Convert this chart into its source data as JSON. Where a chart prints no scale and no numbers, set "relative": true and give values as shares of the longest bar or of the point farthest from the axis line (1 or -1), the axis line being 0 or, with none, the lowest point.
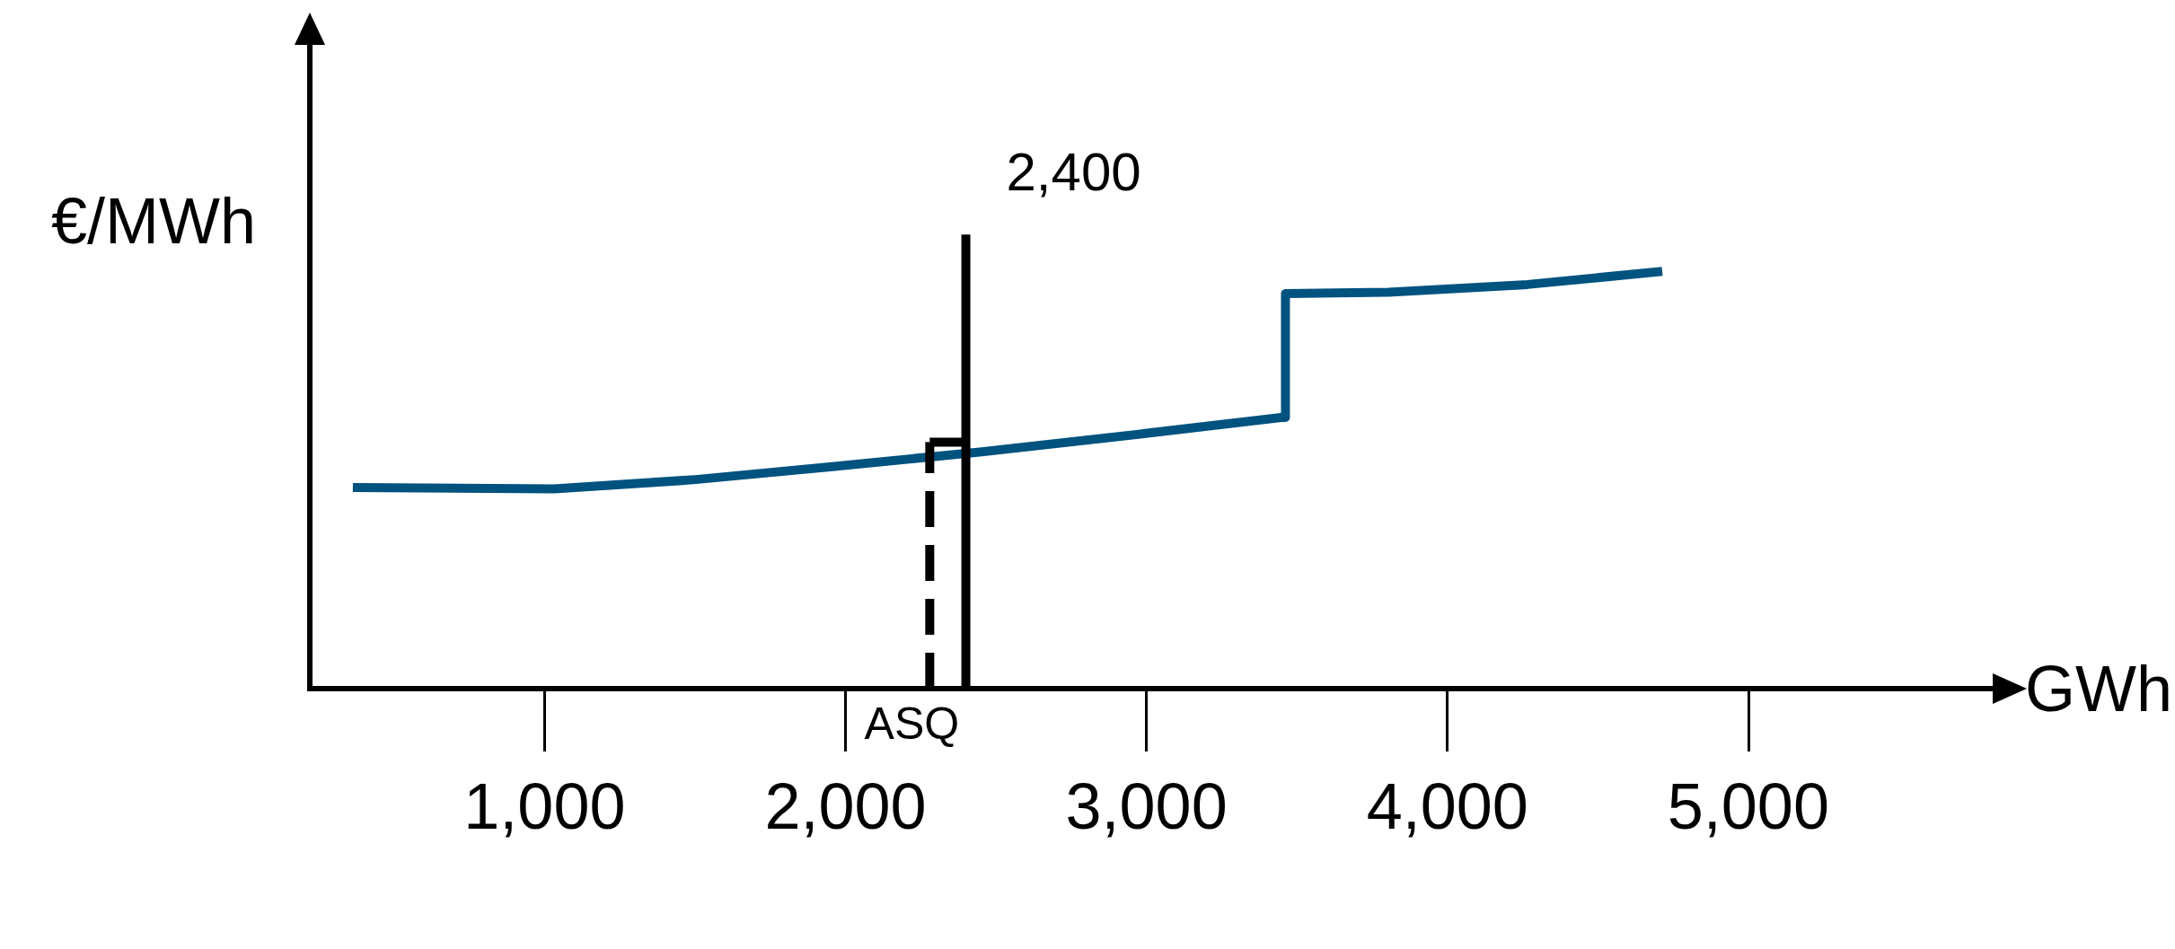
{
  "chart_data": {
    "type": "line",
    "relative": true,
    "xlabel": "GWh",
    "ylabel": "€/MWh",
    "xlim": [
      220,
      5830
    ],
    "xticks": [
      {
        "value": 1000,
        "label": "1,000"
      },
      {
        "value": 2000,
        "label": "2,000"
      },
      {
        "value": 3000,
        "label": "3,000"
      },
      {
        "value": 4000,
        "label": "4,000"
      },
      {
        "value": 5000,
        "label": "5,000"
      }
    ],
    "grid": false,
    "marker": "none",
    "series": [
      {
        "color": "#00527f",
        "line_style": "solid",
        "x": [
          363,
          1032,
          1494,
          1956,
          2446,
          2880,
          3448,
          3462,
          3462,
          3804,
          4266,
          4714
        ],
        "values": [
          0.443,
          0.44,
          0.46,
          0.489,
          0.521,
          0.553,
          0.597,
          0.597,
          0.87,
          0.873,
          0.89,
          0.919
        ]
      },
      {
        "color": "#000000",
        "line_style": "solid",
        "x": [
          2400,
          2400
        ],
        "values": [
          0,
          1
        ]
      },
      {
        "color": "#000000",
        "line_style": "dashed",
        "x": [
          2280,
          2280
        ],
        "values": [
          0,
          0.543
        ]
      },
      {
        "color": "#000000",
        "line_style": "solid",
        "x": [
          2280,
          2400
        ],
        "values": [
          0.543,
          0.543
        ]
      }
    ],
    "annotations": [
      {
        "text": "2,400",
        "x": 2400,
        "y": 1
      },
      {
        "text": "ASQ",
        "x": 2280,
        "y": 0
      }
    ]
  }
}
